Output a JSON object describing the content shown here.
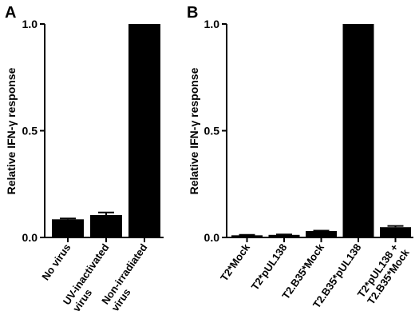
{
  "chart_data": [
    {
      "panel": "A",
      "type": "bar",
      "ylabel": "Relative IFN-γ response",
      "ylim": [
        0,
        1.0
      ],
      "yticks": [
        "0.0",
        "0.5",
        "1.0"
      ],
      "ytick_values": [
        0,
        0.5,
        1.0
      ],
      "categories": [
        [
          "No virus"
        ],
        [
          "UV-inactivated",
          "virus"
        ],
        [
          "Non-irradiated",
          "virus"
        ]
      ],
      "values": [
        0.085,
        0.105,
        1.0
      ],
      "errors": [
        0.004,
        0.012,
        0.0
      ],
      "grid": false
    },
    {
      "panel": "B",
      "type": "bar",
      "ylabel": "Relative IFN-γ response",
      "ylim": [
        0,
        1.0
      ],
      "yticks": [
        "0.0",
        "0.5",
        "1.0"
      ],
      "ytick_values": [
        0,
        0.5,
        1.0
      ],
      "categories": [
        [
          "T2*Mock"
        ],
        [
          "T2*pUL138"
        ],
        [
          "T2.B35*Mock"
        ],
        [
          "T2.B35*pUL138"
        ],
        [
          "T2*pUL138 +",
          "T2.B35*Mock"
        ]
      ],
      "values": [
        0.01,
        0.012,
        0.03,
        1.0,
        0.048
      ],
      "errors": [
        0.002,
        0.002,
        0.002,
        0.0,
        0.006
      ],
      "grid": false
    }
  ]
}
